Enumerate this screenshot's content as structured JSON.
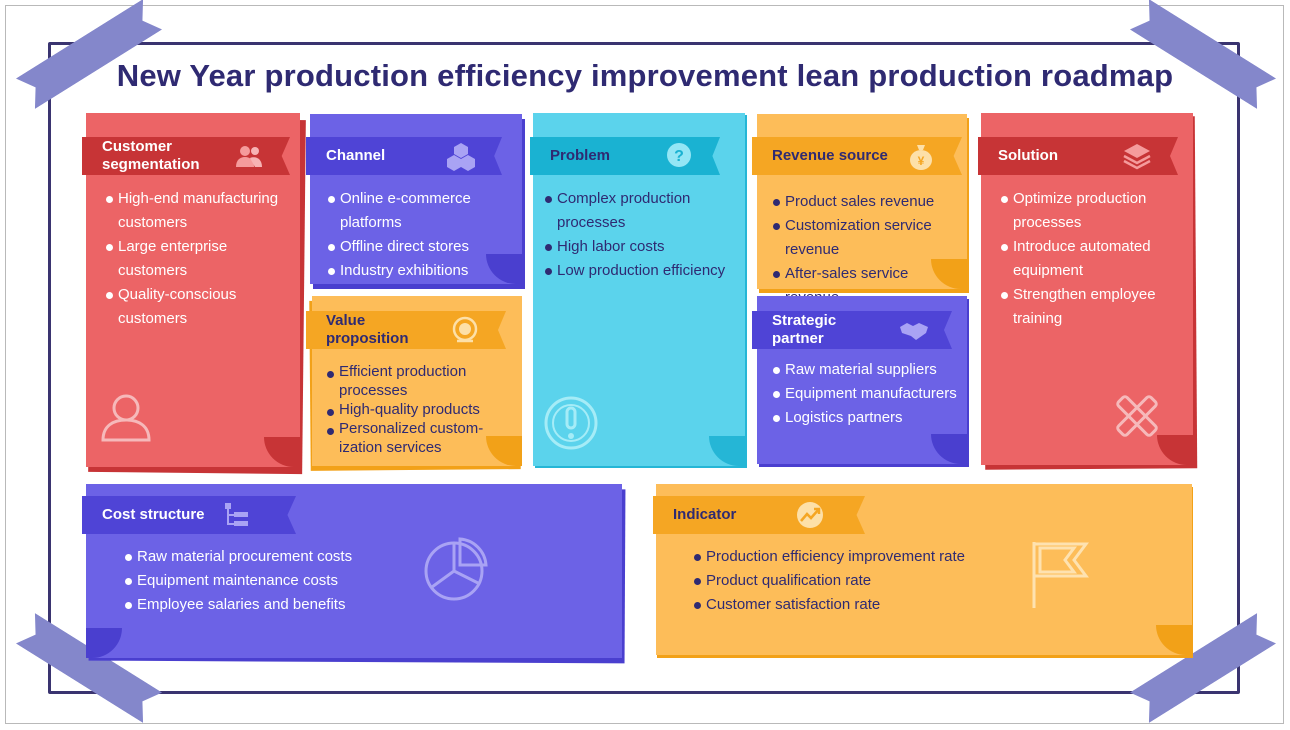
{
  "title": "New Year production efficiency improvement lean production roadmap",
  "colors": {
    "red": "#ec6466",
    "purple": "#6c62e6",
    "cyan": "#5bd3ec",
    "orange": "#fdbd59",
    "title": "#2f2a72"
  },
  "sections": {
    "customer_segmentation": {
      "label": "Customer segmentation",
      "icon": "people-icon",
      "items": [
        "High-end manufacturing customers",
        "Large enterprise customers",
        "Quality-conscious customers"
      ]
    },
    "channel": {
      "label": "Channel",
      "icon": "cubes-icon",
      "items": [
        "Online e-commerce platforms",
        "Offline direct stores",
        "Industry exhibitions"
      ]
    },
    "value_proposition": {
      "label": "Value proposition",
      "icon": "medal-icon",
      "items": [
        "Efficient production processes",
        "High-quality products",
        "Personalized custom-ization services"
      ]
    },
    "problem": {
      "label": "Problem",
      "icon": "question-bubble-icon",
      "items": [
        "Complex production processes",
        "High labor costs",
        "Low production efficiency"
      ]
    },
    "revenue_source": {
      "label": "Revenue source",
      "icon": "money-bag-icon",
      "items": [
        "Product sales revenue",
        "Customization service revenue",
        "After-sales service revenue"
      ]
    },
    "strategic_partner": {
      "label": "Strategic partner",
      "icon": "handshake-icon",
      "items": [
        "Raw material suppliers",
        "Equipment manufacturers",
        "Logistics partners"
      ]
    },
    "solution": {
      "label": "Solution",
      "icon": "layers-icon",
      "items": [
        "Optimize production processes",
        "Introduce automated equipment",
        "Strengthen employee training"
      ]
    },
    "cost_structure": {
      "label": "Cost structure",
      "icon": "hierarchy-icon",
      "items": [
        "Raw material procurement costs",
        "Equipment maintenance costs",
        "Employee salaries and benefits"
      ]
    },
    "indicator": {
      "label": "Indicator",
      "icon": "trend-chart-icon",
      "items": [
        "Production efficiency improvement rate",
        "Product qualification rate",
        "Customer satisfaction rate"
      ]
    }
  }
}
